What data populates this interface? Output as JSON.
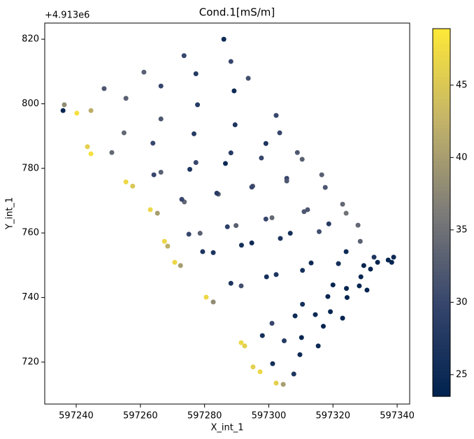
{
  "chart_data": {
    "type": "scatter",
    "title": "Cond.1[mS/m]",
    "x_label": "X_int_1",
    "y_label": "Y_int_1",
    "y_offset_label": "+4.913e6",
    "xlim": [
      597230.2,
      597343.9
    ],
    "xticks": [
      597240,
      597260,
      597280,
      597300,
      597320,
      597340
    ],
    "ylim": [
      707.0,
      825.0
    ],
    "yticks": [
      720,
      740,
      760,
      780,
      800,
      820
    ],
    "x": [
      597286.0,
      597273.6,
      597261.1,
      597248.7,
      597236.3,
      597235.9,
      597240.2,
      597244.6,
      597255.5,
      597266.4,
      597277.3,
      597288.2,
      597293.6,
      597289.2,
      597277.8,
      597266.4,
      597254.9,
      597243.5,
      597244.6,
      597251.1,
      597263.9,
      597276.7,
      597289.5,
      597302.3,
      597303.4,
      597299.1,
      597288.2,
      597277.3,
      597266.4,
      597255.5,
      597257.6,
      597264.2,
      597275.4,
      597286.5,
      597297.7,
      597308.9,
      597310.4,
      597305.6,
      597295.0,
      597284.3,
      597273.7,
      597263.1,
      597265.3,
      597272.9,
      597283.8,
      597294.7,
      597305.6,
      597316.5,
      597317.6,
      597312.1,
      597301.0,
      597289.8,
      597278.6,
      597267.5,
      597268.5,
      597275.1,
      597287.1,
      597299.1,
      597311.0,
      597323.0,
      597324.1,
      597318.7,
      597306.7,
      597294.7,
      597282.7,
      597270.7,
      597272.5,
      597279.4,
      597291.5,
      597303.6,
      597315.7,
      597327.8,
      597328.5,
      597324.1,
      597313.2,
      597302.3,
      597291.4,
      597280.5,
      597282.7,
      597288.2,
      597299.3,
      597310.5,
      597321.7,
      597332.8,
      597329.6,
      597320.0,
      597310.5,
      597301.0,
      597291.4,
      597292.5,
      597298.0,
      597308.2,
      597318.4,
      597328.7,
      597338.9,
      597333.9,
      597324.2,
      597314.5,
      597304.8,
      597295.1,
      597297.3,
      597301.2,
      597310.2,
      597319.2,
      597328.2,
      597337.2,
      597331.7,
      597324.4,
      597317.0,
      597309.7,
      597302.3,
      597304.5,
      597307.8,
      597315.4,
      597323.0,
      597330.6,
      597338.3
    ],
    "values": [
      820.0,
      814.9,
      809.8,
      804.7,
      799.7,
      797.9,
      797.1,
      797.9,
      801.7,
      805.5,
      809.3,
      813.1,
      807.9,
      804.0,
      799.7,
      795.3,
      791.0,
      786.7,
      784.5,
      784.9,
      787.8,
      790.7,
      793.5,
      796.4,
      791.0,
      787.7,
      784.8,
      781.8,
      778.8,
      775.8,
      774.5,
      778.0,
      779.7,
      781.5,
      783.2,
      784.9,
      782.8,
      776.9,
      774.5,
      772.0,
      769.6,
      767.2,
      766.1,
      770.4,
      772.3,
      774.2,
      776.1,
      778.0,
      774.1,
      767.2,
      764.7,
      762.3,
      759.9,
      757.4,
      755.9,
      759.6,
      761.9,
      764.3,
      766.6,
      768.9,
      766.1,
      762.8,
      759.9,
      756.9,
      753.9,
      750.9,
      749.9,
      754.2,
      756.2,
      758.3,
      760.4,
      762.4,
      757.4,
      754.2,
      750.7,
      747.1,
      743.6,
      740.1,
      738.6,
      744.4,
      746.4,
      748.4,
      750.5,
      752.5,
      749.9,
      743.9,
      737.9,
      732.0,
      726.0,
      725.0,
      728.2,
      734.3,
      740.3,
      746.4,
      752.5,
      750.9,
      742.8,
      734.7,
      726.6,
      718.5,
      717.0,
      719.5,
      727.6,
      735.6,
      743.6,
      751.6,
      748.8,
      740.0,
      731.1,
      722.3,
      713.5,
      713.1,
      716.3,
      725.0,
      733.6,
      742.3,
      750.9
    ],
    "color_values": [
      25,
      30,
      33,
      32,
      38,
      24,
      48,
      42,
      33,
      30,
      28,
      30,
      31,
      25,
      28,
      32,
      34,
      46,
      48,
      34,
      30,
      28,
      27,
      30,
      30,
      27,
      28,
      30,
      33,
      47,
      45,
      30,
      27,
      25,
      30,
      32,
      33,
      30,
      32,
      33,
      34,
      47,
      40,
      30,
      28,
      30,
      32,
      33,
      32,
      32,
      34,
      33,
      33,
      47,
      42,
      30,
      29,
      30,
      32,
      34,
      35,
      28,
      26,
      25,
      27,
      47,
      40,
      27,
      26,
      27,
      31,
      34,
      33,
      25,
      25,
      27,
      31,
      47,
      38,
      27,
      26,
      26,
      26,
      27,
      24,
      24,
      26,
      30,
      47,
      46,
      26,
      25,
      24,
      24,
      25,
      24,
      24,
      25,
      28,
      46,
      47,
      26,
      24,
      24,
      24,
      24,
      24,
      24,
      24,
      25,
      46,
      40,
      27,
      25,
      24,
      24,
      24
    ],
    "colorbar": {
      "clim": [
        23.5,
        48.9
      ],
      "ticks": [
        25,
        30,
        35,
        40,
        45
      ],
      "colormap": [
        "#00224e",
        "#35456c",
        "#7c7b78",
        "#c3b369",
        "#fee838"
      ]
    }
  }
}
